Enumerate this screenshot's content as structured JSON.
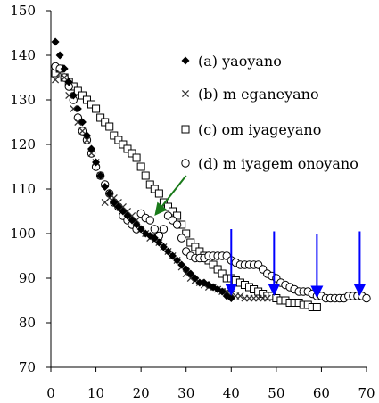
{
  "chart_data": {
    "type": "scatter",
    "xlim": [
      0,
      70
    ],
    "ylim": [
      70,
      150
    ],
    "x_ticks": [
      0,
      10,
      20,
      30,
      40,
      50,
      60,
      70
    ],
    "y_ticks": [
      70,
      80,
      90,
      100,
      110,
      120,
      130,
      140,
      150
    ],
    "grid": false,
    "legend_position": "top-right",
    "series": [
      {
        "name": "(a) yaoyano",
        "marker": "diamond",
        "values": [
          [
            1,
            143
          ],
          [
            2,
            140
          ],
          [
            3,
            137
          ],
          [
            4,
            134
          ],
          [
            5,
            131
          ],
          [
            6,
            128
          ],
          [
            7,
            125
          ],
          [
            8,
            122
          ],
          [
            9,
            119
          ],
          [
            10,
            116
          ],
          [
            11,
            113
          ],
          [
            12,
            110.5
          ],
          [
            13,
            109
          ],
          [
            14,
            107
          ],
          [
            15,
            106
          ],
          [
            16,
            105
          ],
          [
            17,
            104
          ],
          [
            18,
            103
          ],
          [
            19,
            102
          ],
          [
            20,
            101
          ],
          [
            21,
            100
          ],
          [
            22,
            99.5
          ],
          [
            23,
            99
          ],
          [
            24,
            98
          ],
          [
            25,
            97
          ],
          [
            26,
            96
          ],
          [
            27,
            95
          ],
          [
            28,
            94
          ],
          [
            29,
            93
          ],
          [
            30,
            92
          ],
          [
            31,
            91
          ],
          [
            32,
            90
          ],
          [
            33,
            89
          ],
          [
            34,
            89
          ],
          [
            35,
            88.5
          ],
          [
            36,
            88
          ],
          [
            37,
            87.5
          ],
          [
            38,
            87
          ],
          [
            39,
            86
          ],
          [
            40,
            85.5
          ]
        ]
      },
      {
        "name": "(b) m eganeyano",
        "marker": "x",
        "values": [
          [
            1,
            134.5
          ],
          [
            2,
            136
          ],
          [
            3,
            135
          ],
          [
            4,
            131
          ],
          [
            5,
            128
          ],
          [
            6,
            125
          ],
          [
            7,
            123
          ],
          [
            8,
            121
          ],
          [
            9,
            118
          ],
          [
            10,
            116
          ],
          [
            11,
            113
          ],
          [
            12,
            107
          ],
          [
            13,
            108
          ],
          [
            14,
            108
          ],
          [
            15,
            107
          ],
          [
            16,
            106
          ],
          [
            17,
            105
          ],
          [
            18,
            104
          ],
          [
            19,
            103
          ],
          [
            20,
            101
          ],
          [
            21,
            100
          ],
          [
            22,
            99
          ],
          [
            23,
            98.5
          ],
          [
            24,
            98
          ],
          [
            25,
            97
          ],
          [
            26,
            96
          ],
          [
            27,
            95
          ],
          [
            28,
            94
          ],
          [
            29,
            92.5
          ],
          [
            30,
            91
          ],
          [
            31,
            90
          ],
          [
            32,
            89.5
          ],
          [
            33,
            89
          ],
          [
            34,
            88.5
          ],
          [
            35,
            88
          ],
          [
            36,
            88
          ],
          [
            37,
            87.5
          ],
          [
            38,
            87
          ],
          [
            39,
            87
          ],
          [
            40,
            86.5
          ],
          [
            41,
            86
          ],
          [
            42,
            86
          ],
          [
            43,
            85.5
          ],
          [
            44,
            85.5
          ],
          [
            45,
            85.5
          ],
          [
            46,
            85.5
          ],
          [
            47,
            85.5
          ],
          [
            48,
            85.5
          ]
        ]
      },
      {
        "name": "(c) om iyageyano",
        "marker": "square",
        "values": [
          [
            1,
            136
          ],
          [
            2,
            137
          ],
          [
            3,
            135
          ],
          [
            4,
            134
          ],
          [
            5,
            133
          ],
          [
            6,
            132
          ],
          [
            7,
            131
          ],
          [
            8,
            130
          ],
          [
            9,
            129
          ],
          [
            10,
            128
          ],
          [
            11,
            126
          ],
          [
            12,
            125
          ],
          [
            13,
            124
          ],
          [
            14,
            122
          ],
          [
            15,
            121
          ],
          [
            16,
            120
          ],
          [
            17,
            119
          ],
          [
            18,
            118
          ],
          [
            19,
            117
          ],
          [
            20,
            115
          ],
          [
            21,
            113
          ],
          [
            22,
            111
          ],
          [
            23,
            110
          ],
          [
            24,
            109
          ],
          [
            25,
            107
          ],
          [
            26,
            106
          ],
          [
            27,
            105
          ],
          [
            28,
            104
          ],
          [
            29,
            102
          ],
          [
            30,
            100
          ],
          [
            31,
            98
          ],
          [
            32,
            97
          ],
          [
            33,
            96
          ],
          [
            34,
            95
          ],
          [
            35,
            94
          ],
          [
            36,
            93
          ],
          [
            37,
            92
          ],
          [
            38,
            91
          ],
          [
            39,
            90
          ],
          [
            40,
            90
          ],
          [
            41,
            89.5
          ],
          [
            42,
            89
          ],
          [
            43,
            88.5
          ],
          [
            44,
            88
          ],
          [
            45,
            87.5
          ],
          [
            46,
            87
          ],
          [
            47,
            86.5
          ],
          [
            48,
            86
          ],
          [
            49,
            86
          ],
          [
            50,
            85.5
          ],
          [
            51,
            85
          ],
          [
            52,
            85
          ],
          [
            53,
            84.5
          ],
          [
            54,
            84.5
          ],
          [
            55,
            84.5
          ],
          [
            56,
            84
          ],
          [
            57,
            84
          ],
          [
            58,
            83.5
          ],
          [
            59,
            83.5
          ]
        ]
      },
      {
        "name": "(d) m iyagem onoyano",
        "marker": "circle",
        "values": [
          [
            1,
            137.5
          ],
          [
            2,
            137
          ],
          [
            3,
            135
          ],
          [
            4,
            133
          ],
          [
            5,
            130
          ],
          [
            6,
            126
          ],
          [
            7,
            123
          ],
          [
            8,
            121
          ],
          [
            9,
            118
          ],
          [
            10,
            115
          ],
          [
            11,
            113
          ],
          [
            12,
            111
          ],
          [
            13,
            109
          ],
          [
            14,
            107
          ],
          [
            15,
            106
          ],
          [
            16,
            104
          ],
          [
            17,
            103
          ],
          [
            18,
            102
          ],
          [
            19,
            101
          ],
          [
            20,
            104.5
          ],
          [
            21,
            103.5
          ],
          [
            22,
            103
          ],
          [
            23,
            101
          ],
          [
            24,
            99.5
          ],
          [
            25,
            101
          ],
          [
            26,
            104
          ],
          [
            27,
            103
          ],
          [
            28,
            102
          ],
          [
            29,
            99
          ],
          [
            30,
            96
          ],
          [
            31,
            95
          ],
          [
            32,
            94.5
          ],
          [
            33,
            94.5
          ],
          [
            34,
            94.5
          ],
          [
            35,
            95
          ],
          [
            36,
            95
          ],
          [
            37,
            95
          ],
          [
            38,
            95
          ],
          [
            39,
            95
          ],
          [
            40,
            94
          ],
          [
            41,
            93.5
          ],
          [
            42,
            93
          ],
          [
            43,
            93
          ],
          [
            44,
            93
          ],
          [
            45,
            93
          ],
          [
            46,
            93
          ],
          [
            47,
            92
          ],
          [
            48,
            91
          ],
          [
            49,
            90.5
          ],
          [
            50,
            90
          ],
          [
            51,
            89
          ],
          [
            52,
            88.5
          ],
          [
            53,
            88
          ],
          [
            54,
            87.5
          ],
          [
            55,
            87
          ],
          [
            56,
            87
          ],
          [
            57,
            87
          ],
          [
            58,
            86.5
          ],
          [
            59,
            86
          ],
          [
            60,
            86
          ],
          [
            61,
            85.5
          ],
          [
            62,
            85.5
          ],
          [
            63,
            85.5
          ],
          [
            64,
            85.5
          ],
          [
            65,
            85.5
          ],
          [
            66,
            86
          ],
          [
            67,
            86
          ],
          [
            68,
            86
          ],
          [
            69,
            86
          ],
          [
            70,
            85.5
          ]
        ]
      }
    ],
    "annotations": [
      {
        "type": "arrow",
        "color": "#1a7a1a",
        "from": [
          30,
          113
        ],
        "to": [
          23,
          104
        ]
      },
      {
        "type": "arrow",
        "color": "#0000ff",
        "from": [
          40,
          101
        ],
        "to": [
          40,
          86
        ]
      },
      {
        "type": "arrow",
        "color": "#0000ff",
        "from": [
          49.5,
          100.5
        ],
        "to": [
          49.5,
          86
        ]
      },
      {
        "type": "arrow",
        "color": "#0000ff",
        "from": [
          59,
          100
        ],
        "to": [
          59,
          85.5
        ]
      },
      {
        "type": "arrow",
        "color": "#0000ff",
        "from": [
          68.5,
          100.5
        ],
        "to": [
          68.5,
          86
        ]
      }
    ]
  }
}
